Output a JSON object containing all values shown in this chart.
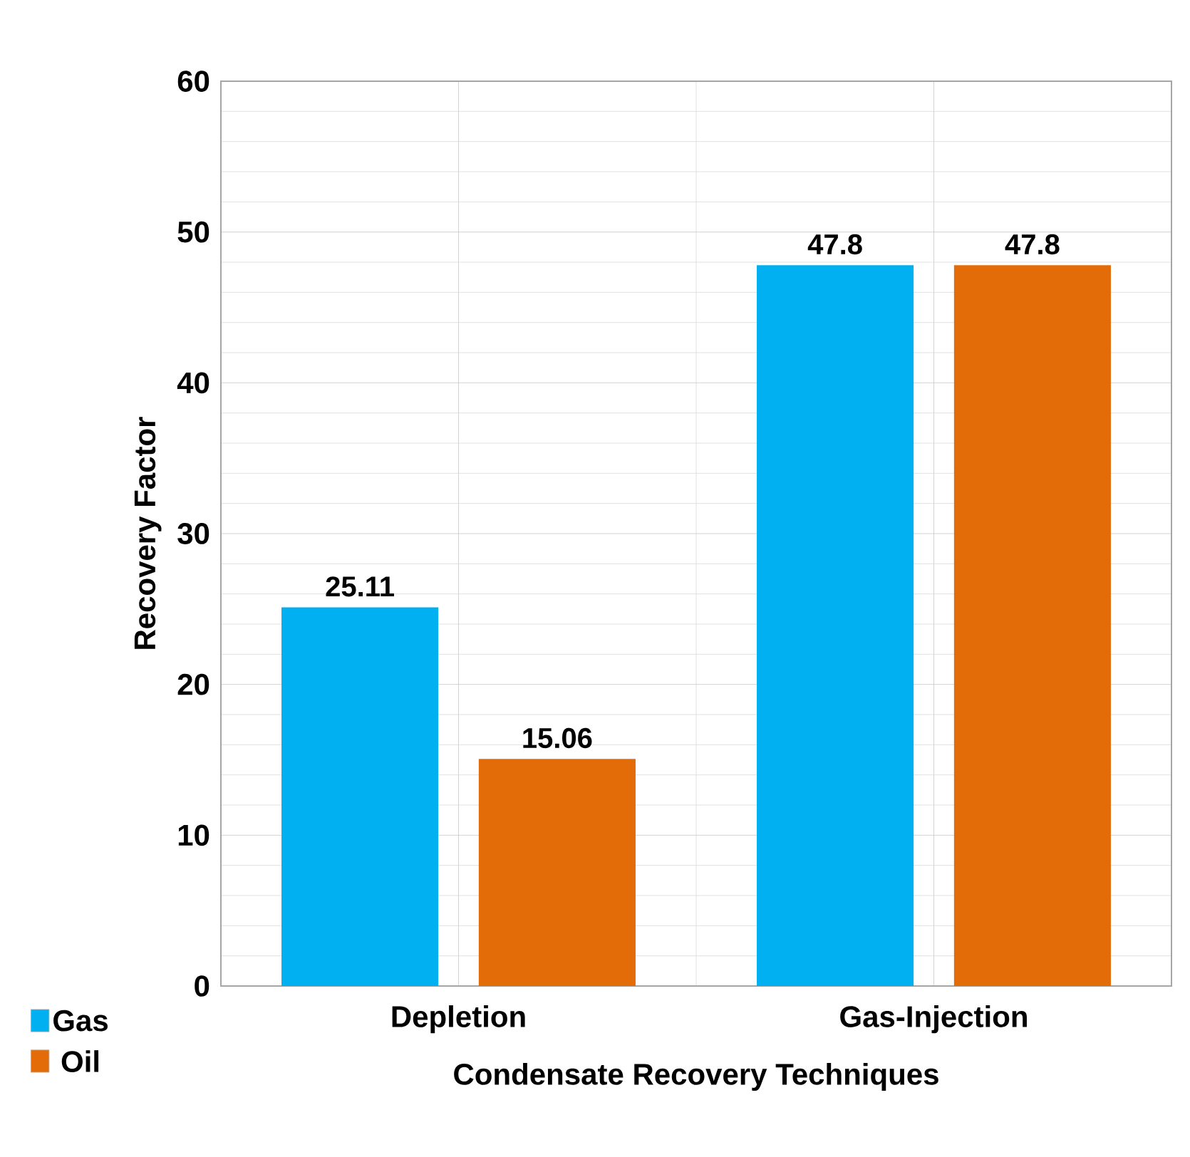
{
  "chart_data": {
    "type": "bar",
    "xlabel": "Condensate Recovery Techniques",
    "ylabel": "Recovery Factor",
    "categories": [
      "Depletion",
      "Gas-Injection"
    ],
    "series": [
      {
        "name": "Gas",
        "color": "#00b0f0",
        "values": [
          25.11,
          47.8
        ]
      },
      {
        "name": "Oil",
        "color": "#e36c09",
        "values": [
          15.06,
          47.8
        ]
      }
    ],
    "ylim": [
      0,
      60
    ],
    "yticks": [
      0,
      10,
      20,
      30,
      40,
      50,
      60
    ],
    "grid": true,
    "legend": "bottom left",
    "data_labels": true
  }
}
